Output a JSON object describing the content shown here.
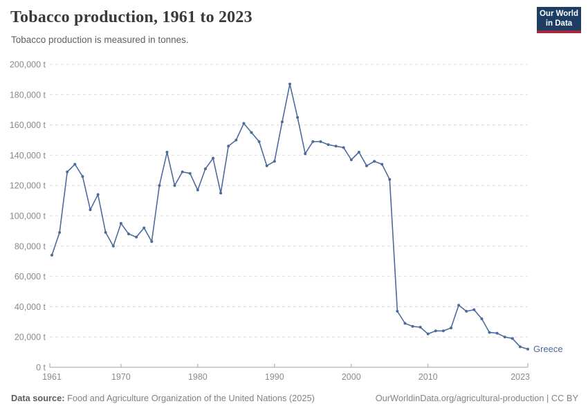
{
  "header": {
    "title": "Tobacco production, 1961 to 2023",
    "subtitle": "Tobacco production is measured in tonnes."
  },
  "logo": {
    "line1": "Our World",
    "line2": "in Data",
    "bg": "#1D3D63",
    "accent": "#A5283C"
  },
  "chart_data": {
    "type": "line",
    "title": "Tobacco production, 1961 to 2023",
    "subtitle": "Tobacco production is measured in tonnes.",
    "unit": "tonnes",
    "grid": "horizontal-dashed",
    "legend_position": "end-of-line-label",
    "xlim": [
      1961,
      2023
    ],
    "ylim": [
      0,
      200000
    ],
    "x": [
      1961,
      1962,
      1963,
      1964,
      1965,
      1966,
      1967,
      1968,
      1969,
      1970,
      1971,
      1972,
      1973,
      1974,
      1975,
      1976,
      1977,
      1978,
      1979,
      1980,
      1981,
      1982,
      1983,
      1984,
      1985,
      1986,
      1987,
      1988,
      1989,
      1990,
      1991,
      1992,
      1993,
      1994,
      1995,
      1996,
      1997,
      1998,
      1999,
      2000,
      2001,
      2002,
      2003,
      2004,
      2005,
      2006,
      2007,
      2008,
      2009,
      2010,
      2011,
      2012,
      2013,
      2014,
      2015,
      2016,
      2017,
      2018,
      2019,
      2020,
      2021,
      2022,
      2023
    ],
    "series": [
      {
        "name": "Greece",
        "color": "#4C6A9C",
        "values": [
          74000,
          89000,
          129000,
          134000,
          126000,
          104000,
          114000,
          89000,
          80000,
          95000,
          88000,
          86000,
          92000,
          83000,
          120000,
          142000,
          120000,
          129000,
          128000,
          117000,
          131000,
          138000,
          115000,
          146000,
          150000,
          161000,
          155000,
          149000,
          133000,
          136000,
          162000,
          187000,
          165000,
          141000,
          149000,
          149000,
          147000,
          146000,
          145000,
          137000,
          142000,
          133000,
          136000,
          134000,
          124000,
          37000,
          29000,
          27000,
          26500,
          22000,
          24000,
          24000,
          26000,
          41000,
          37000,
          38000,
          32000,
          23000,
          22500,
          20000,
          19000,
          13500,
          12000
        ]
      }
    ],
    "yticks": [
      {
        "value": 0,
        "label": "0 t"
      },
      {
        "value": 20000,
        "label": "20,000 t"
      },
      {
        "value": 40000,
        "label": "40,000 t"
      },
      {
        "value": 60000,
        "label": "60,000 t"
      },
      {
        "value": 80000,
        "label": "80,000 t"
      },
      {
        "value": 100000,
        "label": "100,000 t"
      },
      {
        "value": 120000,
        "label": "120,000 t"
      },
      {
        "value": 140000,
        "label": "140,000 t"
      },
      {
        "value": 160000,
        "label": "160,000 t"
      },
      {
        "value": 180000,
        "label": "180,000 t"
      },
      {
        "value": 200000,
        "label": "200,000 t"
      }
    ],
    "xticks": [
      {
        "value": 1961,
        "label": "1961"
      },
      {
        "value": 1970,
        "label": "1970"
      },
      {
        "value": 1980,
        "label": "1980"
      },
      {
        "value": 1990,
        "label": "1990"
      },
      {
        "value": 2000,
        "label": "2000"
      },
      {
        "value": 2010,
        "label": "2010"
      },
      {
        "value": 2023,
        "label": "2023"
      }
    ]
  },
  "footer": {
    "source_label": "Data source:",
    "source_text": " Food and Agriculture Organization of the United Nations (2025)",
    "right_text": "OurWorldinData.org/agricultural-production | CC BY"
  }
}
